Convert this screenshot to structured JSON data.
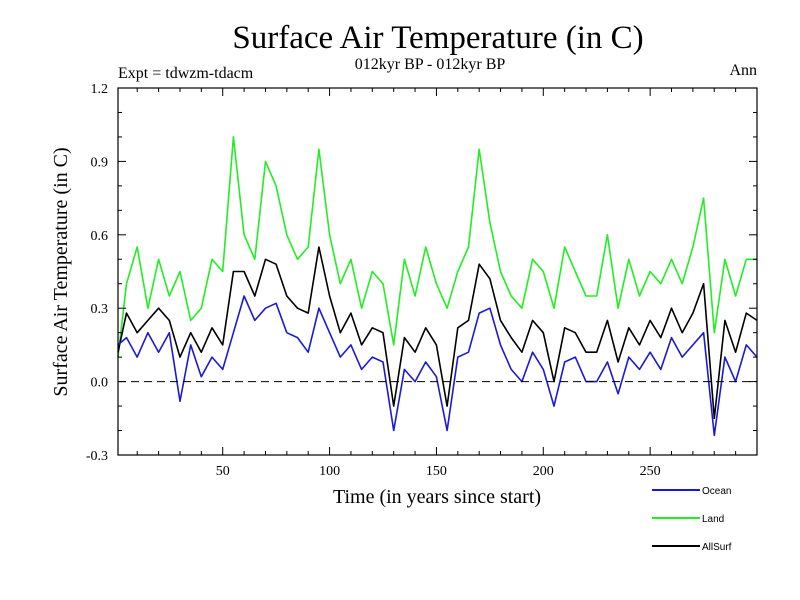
{
  "chart_data": {
    "type": "line",
    "title": "Surface Air Temperature (in C)",
    "subtitle": "012kyr BP - 012kyr BP",
    "left_label": "Expt = tdwzm-tdacm",
    "right_label": "Ann",
    "xlabel": "Time (in years since start)",
    "ylabel": "Surface Air Temperature (in C)",
    "xlim": [
      1,
      300
    ],
    "ylim": [
      -0.3,
      1.2
    ],
    "xticks": [
      50,
      100,
      150,
      200,
      250
    ],
    "xtick_labels": [
      "50",
      "100",
      "150",
      "200",
      "250"
    ],
    "yticks": [
      -0.3,
      0.0,
      0.3,
      0.6,
      0.9,
      1.2
    ],
    "ytick_labels": [
      "-0.3",
      "0.0",
      "0.3",
      "0.6",
      "0.9",
      "1.2"
    ],
    "zero_line": 0.0,
    "legend_position": "bottom-right",
    "series": [
      {
        "name": "Ocean",
        "color": "#1a1ad6",
        "x": [
          1,
          5,
          10,
          15,
          20,
          25,
          30,
          35,
          40,
          45,
          50,
          55,
          60,
          65,
          70,
          75,
          80,
          85,
          90,
          95,
          100,
          105,
          110,
          115,
          120,
          125,
          130,
          135,
          140,
          145,
          150,
          155,
          160,
          165,
          170,
          175,
          180,
          185,
          190,
          195,
          200,
          205,
          210,
          215,
          220,
          225,
          230,
          235,
          240,
          245,
          250,
          255,
          260,
          265,
          270,
          275,
          280,
          285,
          290,
          295,
          300
        ],
        "values": [
          0.15,
          0.18,
          0.1,
          0.2,
          0.12,
          0.2,
          -0.08,
          0.15,
          0.02,
          0.1,
          0.05,
          0.2,
          0.35,
          0.25,
          0.3,
          0.32,
          0.2,
          0.18,
          0.12,
          0.3,
          0.2,
          0.1,
          0.15,
          0.05,
          0.1,
          0.08,
          -0.2,
          0.05,
          0.0,
          0.08,
          0.02,
          -0.2,
          0.1,
          0.12,
          0.28,
          0.3,
          0.15,
          0.05,
          0.0,
          0.12,
          0.05,
          -0.1,
          0.08,
          0.1,
          0.0,
          0.0,
          0.08,
          -0.05,
          0.1,
          0.05,
          0.12,
          0.05,
          0.18,
          0.1,
          0.15,
          0.2,
          -0.22,
          0.1,
          0.0,
          0.15,
          0.1
        ]
      },
      {
        "name": "Land",
        "color": "#22ee22",
        "x": [
          1,
          5,
          10,
          15,
          20,
          25,
          30,
          35,
          40,
          45,
          50,
          55,
          60,
          65,
          70,
          75,
          80,
          85,
          90,
          95,
          100,
          105,
          110,
          115,
          120,
          125,
          130,
          135,
          140,
          145,
          150,
          155,
          160,
          165,
          170,
          175,
          180,
          185,
          190,
          195,
          200,
          205,
          210,
          215,
          220,
          225,
          230,
          235,
          240,
          245,
          250,
          255,
          260,
          265,
          270,
          275,
          280,
          285,
          290,
          295,
          300
        ],
        "values": [
          0.1,
          0.4,
          0.55,
          0.3,
          0.5,
          0.35,
          0.45,
          0.25,
          0.3,
          0.5,
          0.45,
          1.0,
          0.6,
          0.5,
          0.9,
          0.8,
          0.6,
          0.5,
          0.55,
          0.95,
          0.6,
          0.4,
          0.5,
          0.3,
          0.45,
          0.4,
          0.15,
          0.5,
          0.35,
          0.55,
          0.4,
          0.3,
          0.45,
          0.55,
          0.95,
          0.65,
          0.45,
          0.35,
          0.3,
          0.5,
          0.45,
          0.3,
          0.55,
          0.45,
          0.35,
          0.35,
          0.6,
          0.3,
          0.5,
          0.35,
          0.45,
          0.4,
          0.5,
          0.4,
          0.55,
          0.75,
          0.2,
          0.5,
          0.35,
          0.5,
          0.5
        ]
      },
      {
        "name": "AllSurf",
        "color": "#000000",
        "x": [
          1,
          5,
          10,
          15,
          20,
          25,
          30,
          35,
          40,
          45,
          50,
          55,
          60,
          65,
          70,
          75,
          80,
          85,
          90,
          95,
          100,
          105,
          110,
          115,
          120,
          125,
          130,
          135,
          140,
          145,
          150,
          155,
          160,
          165,
          170,
          175,
          180,
          185,
          190,
          195,
          200,
          205,
          210,
          215,
          220,
          225,
          230,
          235,
          240,
          245,
          250,
          255,
          260,
          265,
          270,
          275,
          280,
          285,
          290,
          295,
          300
        ],
        "values": [
          0.12,
          0.28,
          0.2,
          0.25,
          0.3,
          0.25,
          0.1,
          0.2,
          0.12,
          0.22,
          0.15,
          0.45,
          0.45,
          0.35,
          0.5,
          0.48,
          0.35,
          0.3,
          0.28,
          0.55,
          0.35,
          0.2,
          0.28,
          0.15,
          0.22,
          0.2,
          -0.1,
          0.18,
          0.12,
          0.22,
          0.15,
          -0.1,
          0.22,
          0.25,
          0.48,
          0.42,
          0.25,
          0.18,
          0.12,
          0.25,
          0.2,
          0.0,
          0.22,
          0.2,
          0.12,
          0.12,
          0.25,
          0.08,
          0.22,
          0.15,
          0.25,
          0.18,
          0.3,
          0.2,
          0.28,
          0.4,
          -0.15,
          0.25,
          0.12,
          0.28,
          0.25
        ]
      }
    ]
  }
}
